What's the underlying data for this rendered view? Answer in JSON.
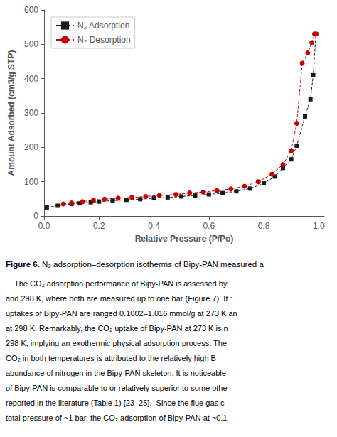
{
  "chart_data": {
    "type": "line",
    "xlabel": "Relative Pressure (P/Po)",
    "ylabel": "Amount Adsorbed (cm3/g STP)",
    "series": [
      {
        "name": "N₂ Adsorption",
        "color": "#1a1a1a",
        "marker": "square",
        "line_style": "dashed",
        "x": [
          0.01,
          0.05,
          0.1,
          0.13,
          0.17,
          0.2,
          0.25,
          0.3,
          0.35,
          0.4,
          0.45,
          0.5,
          0.55,
          0.6,
          0.65,
          0.7,
          0.75,
          0.8,
          0.84,
          0.87,
          0.9,
          0.92,
          0.95,
          0.97,
          0.98,
          0.99
        ],
        "values": [
          25,
          30,
          35,
          37,
          40,
          42,
          45,
          47,
          49,
          52,
          54,
          57,
          60,
          63,
          67,
          72,
          80,
          95,
          115,
          140,
          165,
          205,
          290,
          340,
          410,
          530
        ]
      },
      {
        "name": "N₂ Desorption",
        "color": "#cc0000",
        "marker": "circle",
        "line_style": "dashed",
        "x": [
          0.07,
          0.1,
          0.14,
          0.18,
          0.22,
          0.27,
          0.32,
          0.37,
          0.42,
          0.48,
          0.53,
          0.58,
          0.63,
          0.68,
          0.73,
          0.78,
          0.83,
          0.87,
          0.9,
          0.92,
          0.94,
          0.96,
          0.975,
          0.985,
          0.99
        ],
        "values": [
          35,
          38,
          42,
          46,
          49,
          52,
          54,
          57,
          60,
          63,
          67,
          70,
          74,
          79,
          87,
          100,
          122,
          150,
          190,
          270,
          445,
          475,
          505,
          530,
          530
        ]
      }
    ],
    "xlim": [
      0.0,
      1.02
    ],
    "xticks": [
      {
        "value": 0,
        "label": "0.0"
      },
      0.2,
      0.4,
      0.6,
      0.8,
      {
        "value": 1,
        "label": "1.0"
      }
    ],
    "ylim": [
      0,
      600
    ],
    "yticks": [
      0,
      100,
      200,
      300,
      400,
      500,
      600
    ],
    "grid": false,
    "legend": "upper left",
    "annotations": [
      [
        "Figure 6.",
        " N₂ adsorption–desorption isotherms of Bipy-PAN measured a"
      ],
      [
        "    The CO₂ adsorption performance of Bipy-PAN is assessed by"
      ],
      [
        "and 298 K, where both are measured up to one bar (Figure 7). It :"
      ],
      [
        "uptakes of Bipy-PAN are ranged 0.1002–1.016 mmol/g at 273 K an"
      ],
      [
        "at 298 K. Remarkably, the CO₂ uptake of Bipy-PAN at 273 K is n"
      ],
      [
        "298 K, implying an exothermic physical adsorption process. The"
      ],
      [
        "CO₂ in both temperatures is attributed to the relatively high B"
      ],
      [
        "abundance of nitrogen in the Bipy-PAN skeleton. It is noticeable"
      ],
      [
        "of Bipy-PAN is comparable to or relatively superior to some othe"
      ],
      [
        "reported in the literature (Table 1) [23–25].  Since the flue gas c"
      ],
      [
        "total pressure of ~1 bar, the CO₂ adsorption of Bipy-PAN at ~0.1"
      ]
    ]
  }
}
